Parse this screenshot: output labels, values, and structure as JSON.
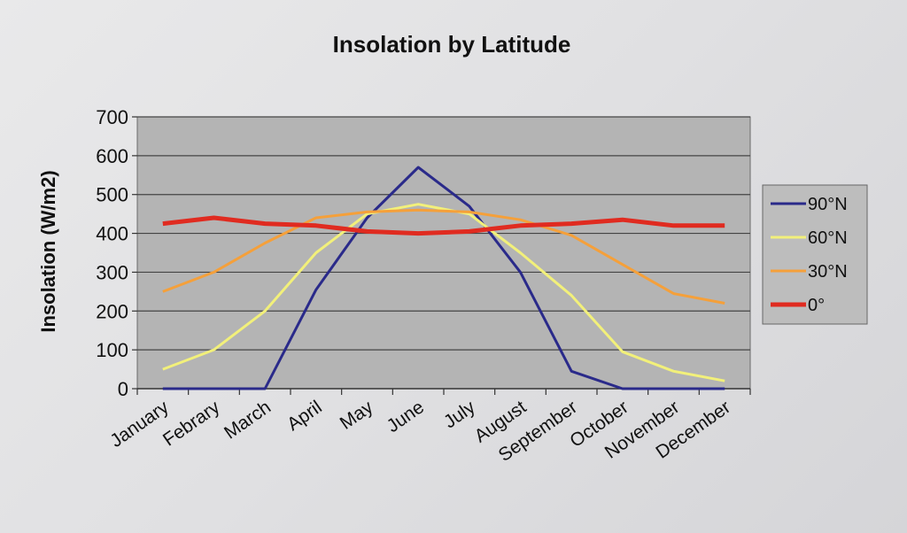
{
  "chart_data": {
    "type": "line",
    "title": "Insolation by Latitude",
    "xlabel": "",
    "ylabel": "Insolation (W/m2)",
    "ylim": [
      0,
      700
    ],
    "yticks": [
      0,
      100,
      200,
      300,
      400,
      500,
      600,
      700
    ],
    "grid": true,
    "legend_position": "right",
    "categories": [
      "January",
      "Febrary",
      "March",
      "April",
      "May",
      "June",
      "July",
      "August",
      "September",
      "October",
      "November",
      "December"
    ],
    "series": [
      {
        "name": "90°N",
        "color": "#2a2a8a",
        "values": [
          0,
          0,
          0,
          255,
          440,
          570,
          470,
          300,
          45,
          0,
          0,
          0
        ]
      },
      {
        "name": "60°N",
        "color": "#f2f07a",
        "values": [
          50,
          100,
          200,
          350,
          450,
          475,
          450,
          350,
          240,
          95,
          45,
          20
        ]
      },
      {
        "name": "30°N",
        "color": "#f5a03a",
        "values": [
          250,
          300,
          375,
          440,
          455,
          460,
          455,
          435,
          395,
          320,
          245,
          220
        ]
      },
      {
        "name": "0°",
        "color": "#e02b20",
        "values": [
          425,
          440,
          425,
          420,
          405,
          400,
          405,
          420,
          425,
          435,
          420,
          420
        ]
      }
    ]
  }
}
